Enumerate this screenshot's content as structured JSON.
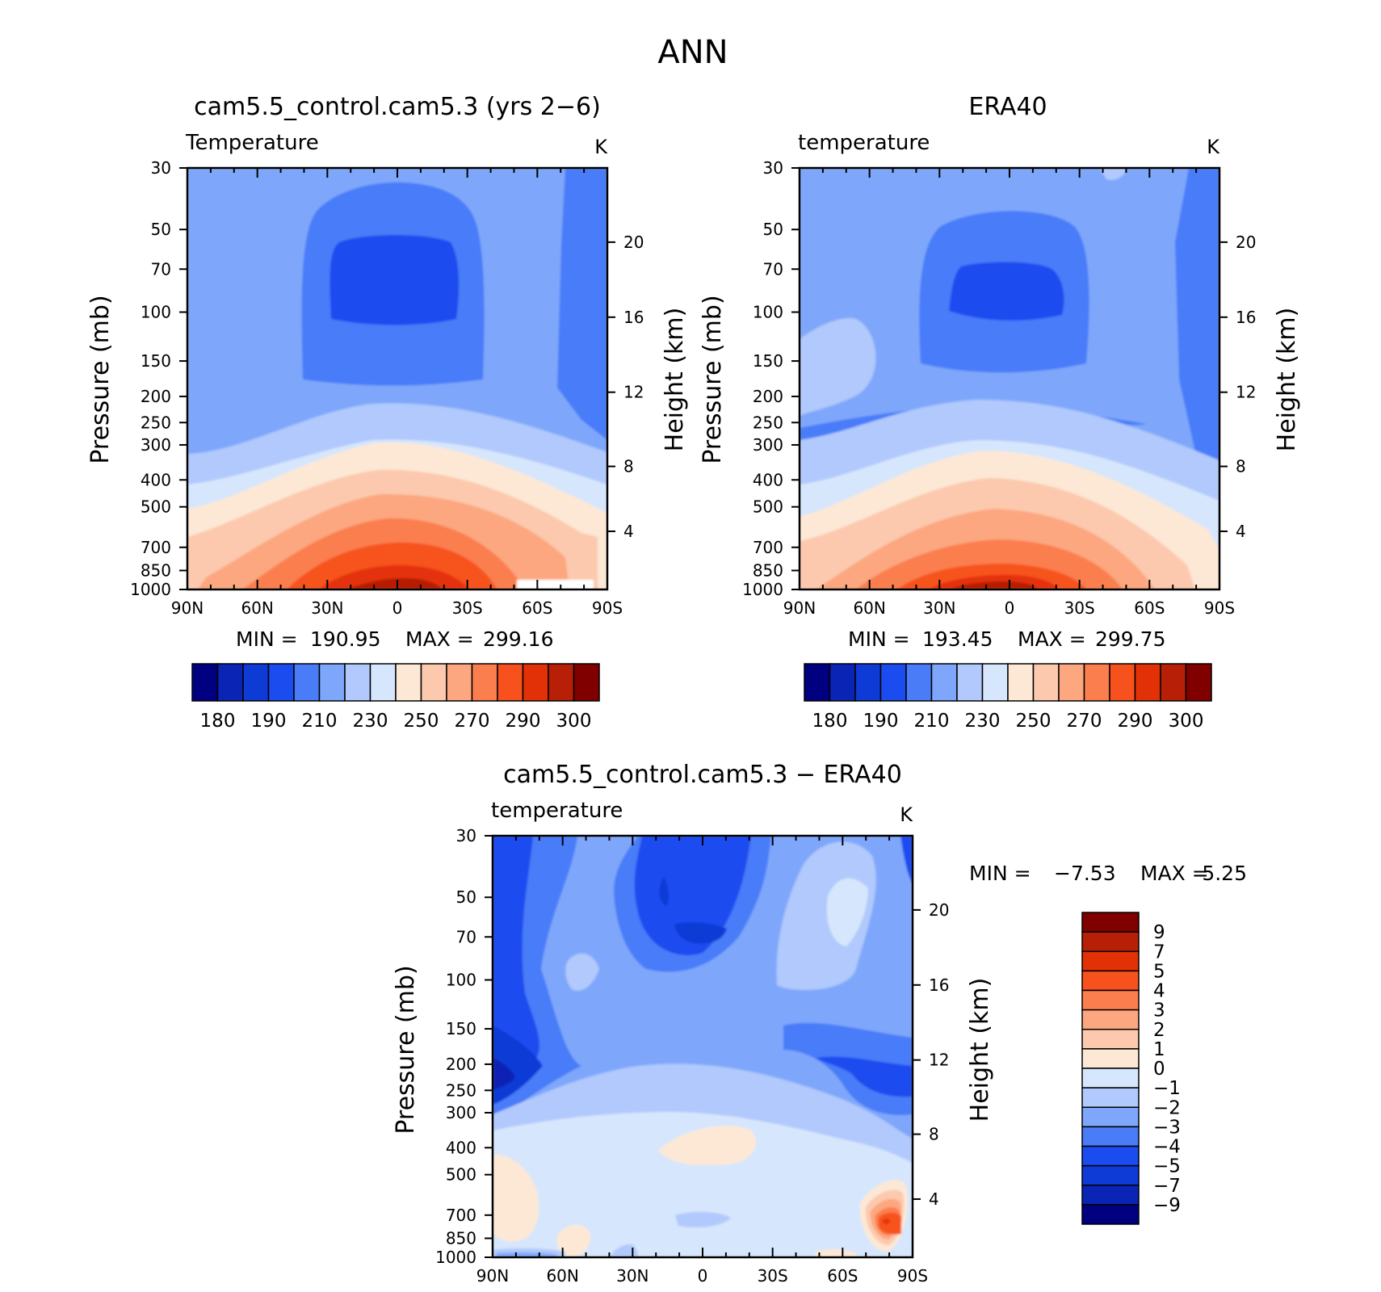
{
  "page_title": "ANN",
  "colors": {
    "abs_levels": [
      "#000080",
      "#0a24b5",
      "#0e3ad6",
      "#1a4cf0",
      "#4a7cf8",
      "#7ea7fb",
      "#b1c9fc",
      "#d6e6fd",
      "#fde8d5",
      "#fcc9ae",
      "#fca77f",
      "#fb7e4f",
      "#f7521d",
      "#e33107",
      "#b71f06",
      "#800000"
    ],
    "diff_levels": [
      "#000080",
      "#0a24b5",
      "#0e3ad6",
      "#1a4cf0",
      "#4a7cf8",
      "#7ea7fb",
      "#b1c9fc",
      "#d6e6fd",
      "#fde8d5",
      "#fcc9ae",
      "#fca77f",
      "#fb7e4f",
      "#f7521d",
      "#e33107",
      "#b71f06",
      "#800000"
    ]
  },
  "chart_data": [
    {
      "type": "contour",
      "title": "cam5.5_control.cam5.3 (yrs 2−6)",
      "variable_label": "Temperature",
      "units": "K",
      "ylabel": "Pressure (mb)",
      "y2label": "Height (km)",
      "x_ticks": [
        "90N",
        "60N",
        "30N",
        "0",
        "30S",
        "60S",
        "90S"
      ],
      "y_ticks": [
        "30",
        "50",
        "70",
        "100",
        "150",
        "200",
        "250",
        "300",
        "400",
        "500",
        "700",
        "850",
        "1000"
      ],
      "y2_ticks": [
        "20",
        "16",
        "12",
        "8",
        "4"
      ],
      "stats": {
        "min_label": "MIN =",
        "min": "190.95",
        "max_label": "MAX =",
        "max": "299.16"
      },
      "colorbar_labels": [
        "180",
        "190",
        "210",
        "230",
        "250",
        "270",
        "290",
        "300"
      ]
    },
    {
      "type": "contour",
      "title": "ERA40",
      "variable_label": "temperature",
      "units": "K",
      "ylabel": "Pressure (mb)",
      "y2label": "Height (km)",
      "x_ticks": [
        "90N",
        "60N",
        "30N",
        "0",
        "30S",
        "60S",
        "90S"
      ],
      "y_ticks": [
        "30",
        "50",
        "70",
        "100",
        "150",
        "200",
        "250",
        "300",
        "400",
        "500",
        "700",
        "850",
        "1000"
      ],
      "y2_ticks": [
        "20",
        "16",
        "12",
        "8",
        "4"
      ],
      "stats": {
        "min_label": "MIN =",
        "min": "193.45",
        "max_label": "MAX =",
        "max": "299.75"
      },
      "colorbar_labels": [
        "180",
        "190",
        "210",
        "230",
        "250",
        "270",
        "290",
        "300"
      ]
    },
    {
      "type": "contour",
      "title": "cam5.5_control.cam5.3 − ERA40",
      "variable_label": "temperature",
      "units": "K",
      "ylabel": "Pressure (mb)",
      "y2label": "Height (km)",
      "x_ticks": [
        "90N",
        "60N",
        "30N",
        "0",
        "30S",
        "60S",
        "90S"
      ],
      "y_ticks": [
        "30",
        "50",
        "70",
        "100",
        "150",
        "200",
        "250",
        "300",
        "400",
        "500",
        "700",
        "850",
        "1000"
      ],
      "y2_ticks": [
        "20",
        "16",
        "12",
        "8",
        "4"
      ],
      "stats": {
        "min_label": "MIN =",
        "min": "−7.53",
        "max_label": "MAX =",
        "max": "5.25"
      },
      "colorbar_labels": [
        "9",
        "7",
        "5",
        "4",
        "3",
        "2",
        "1",
        "0",
        "−1",
        "−2",
        "−3",
        "−4",
        "−5",
        "−7",
        "−9"
      ]
    }
  ]
}
